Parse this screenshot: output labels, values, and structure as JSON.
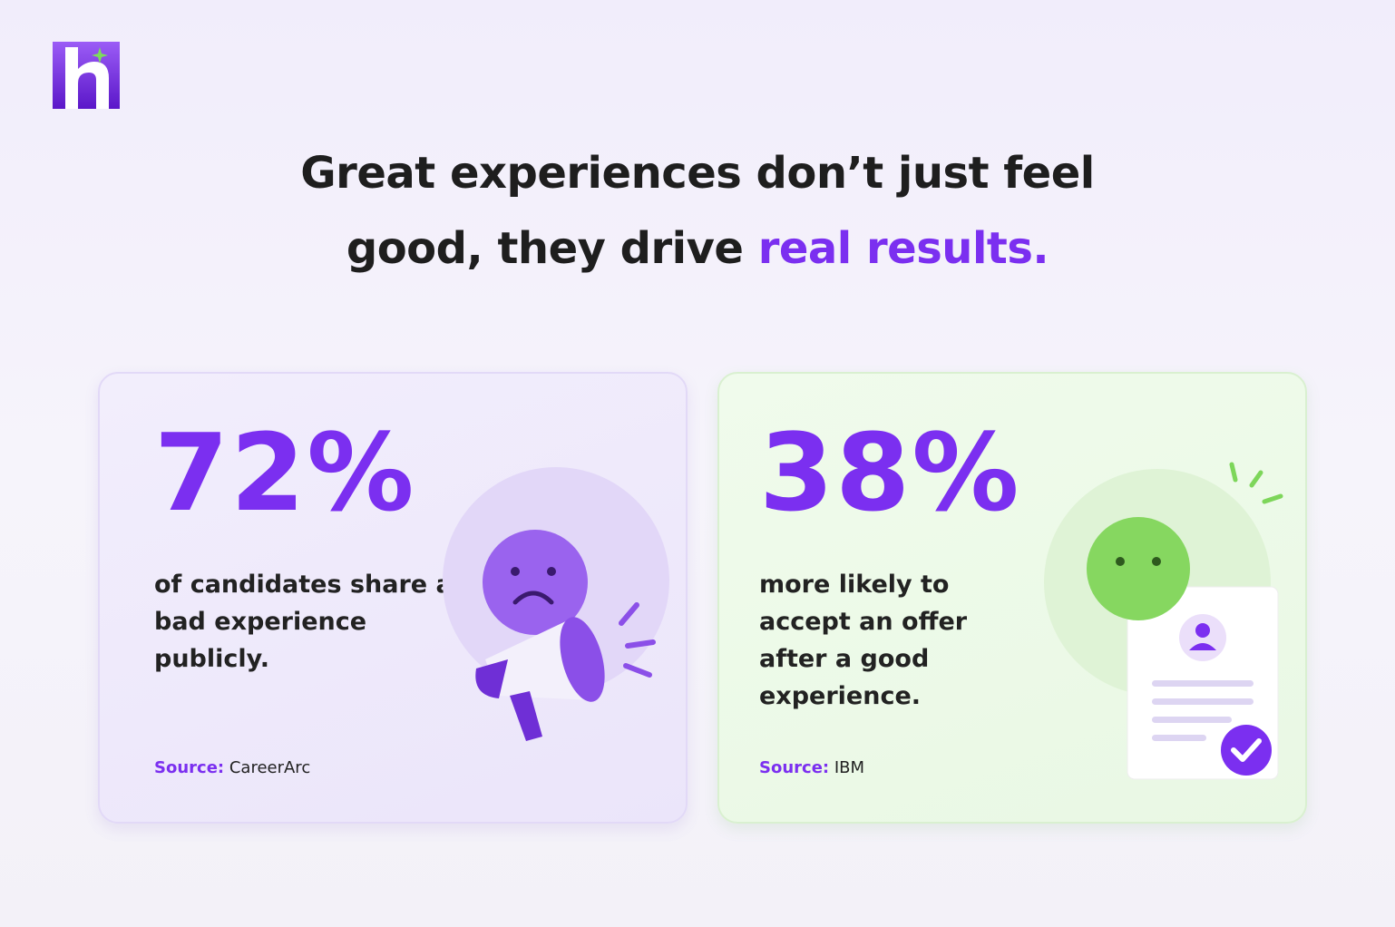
{
  "headline": {
    "lines": [
      "Great experiences don’t just feel",
      "good, they drive"
    ],
    "highlight": "real results."
  },
  "cards": [
    {
      "stat": "72%",
      "description_lines": [
        "of candidates share a",
        "bad experience",
        "publicly."
      ],
      "source_label": "Source:",
      "source": "CareerArc"
    },
    {
      "stat": "38%",
      "description_lines": [
        "more likely to",
        "accept an offer",
        "after a good",
        "experience."
      ],
      "source_label": "Source:",
      "source": "IBM"
    }
  ]
}
